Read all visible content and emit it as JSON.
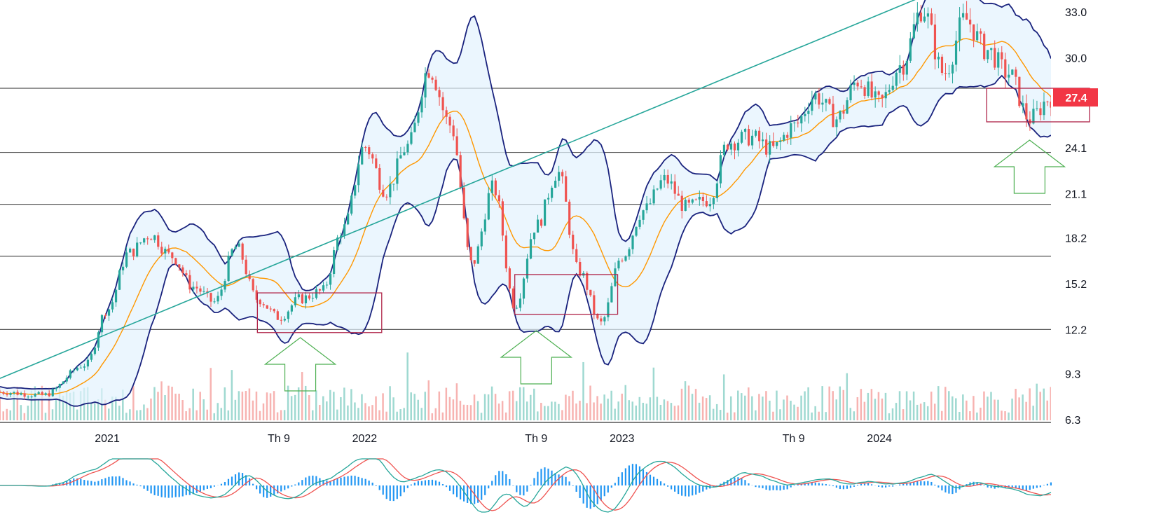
{
  "chart_data": {
    "type": "candlestick",
    "y_axis": {
      "ticks": [
        33.0,
        30.0,
        24.1,
        21.1,
        18.2,
        15.2,
        12.2,
        9.3,
        6.3
      ],
      "tick_labels": [
        "33.0",
        "30.0",
        "24.1",
        "21.1",
        "18.2",
        "15.2",
        "12.2",
        "9.3",
        "6.3"
      ],
      "ylim": [
        5.8,
        33.8
      ],
      "position": "right"
    },
    "x_axis": {
      "start": "2020-08",
      "end": "2024-09",
      "ticks": [
        {
          "label": "2021",
          "date": "2021-01"
        },
        {
          "label": "Th 9",
          "date": "2021-09"
        },
        {
          "label": "2022",
          "date": "2022-01"
        },
        {
          "label": "Th 9",
          "date": "2022-09"
        },
        {
          "label": "2023",
          "date": "2023-01"
        },
        {
          "label": "Th 9",
          "date": "2023-09"
        },
        {
          "label": "2024",
          "date": "2024-01"
        }
      ]
    },
    "last_price": {
      "value": 27.4,
      "label": "27.4",
      "color": "#f23645"
    },
    "horizontal_levels": [
      28.0,
      23.8,
      20.4,
      17.0,
      12.2
    ],
    "trendline": {
      "from": {
        "date": "2020-08",
        "price": 9.0
      },
      "to": {
        "date": "2024-03",
        "price": 34.0
      }
    },
    "price_path": [
      [
        "2020-08",
        8.1
      ],
      [
        "2020-10",
        7.9
      ],
      [
        "2020-12",
        9.9
      ],
      [
        "2021-01",
        13.5
      ],
      [
        "2021-02",
        17.2
      ],
      [
        "2021-03",
        18.4
      ],
      [
        "2021-04",
        17.0
      ],
      [
        "2021-05",
        15.0
      ],
      [
        "2021-06",
        14.0
      ],
      [
        "2021-07",
        17.6
      ],
      [
        "2021-08",
        14.2
      ],
      [
        "2021-09",
        13.0
      ],
      [
        "2021-10",
        14.2
      ],
      [
        "2021-11",
        14.7
      ],
      [
        "2021-12",
        18.8
      ],
      [
        "2022-01",
        24.2
      ],
      [
        "2022-02",
        21.3
      ],
      [
        "2022-03",
        24.2
      ],
      [
        "2022-04",
        29.3
      ],
      [
        "2022-05",
        25.6
      ],
      [
        "2022-06",
        16.5
      ],
      [
        "2022-07",
        21.5
      ],
      [
        "2022-08",
        13.8
      ],
      [
        "2022-09",
        19.0
      ],
      [
        "2022-10",
        22.5
      ],
      [
        "2022-11",
        16.0
      ],
      [
        "2022-12",
        12.6
      ],
      [
        "2023-01",
        17.0
      ],
      [
        "2023-02",
        20.0
      ],
      [
        "2023-03",
        22.0
      ],
      [
        "2023-04",
        20.2
      ],
      [
        "2023-05",
        20.7
      ],
      [
        "2023-06",
        24.5
      ],
      [
        "2023-07",
        24.8
      ],
      [
        "2023-08",
        24.0
      ],
      [
        "2023-09",
        25.5
      ],
      [
        "2023-10",
        27.5
      ],
      [
        "2023-11",
        26.0
      ],
      [
        "2023-12",
        28.5
      ],
      [
        "2024-01",
        27.0
      ],
      [
        "2024-02",
        29.5
      ],
      [
        "2024-03",
        33.2
      ],
      [
        "2024-04",
        29.0
      ],
      [
        "2024-05",
        32.5
      ],
      [
        "2024-06",
        30.5
      ],
      [
        "2024-07",
        29.0
      ],
      [
        "2024-08",
        26.0
      ],
      [
        "2024-09",
        27.4
      ]
    ],
    "annotations": {
      "support_boxes": [
        {
          "from": "2021-08",
          "to": "2021-12",
          "low": 12.0,
          "high": 14.6
        },
        {
          "from": "2022-08",
          "to": "2022-11",
          "low": 13.2,
          "high": 15.8
        },
        {
          "from": "2024-06",
          "to": "2024-09",
          "low": 25.8,
          "high": 28.0
        }
      ],
      "up_arrows": [
        {
          "date": "2021-10",
          "color": "#4caf50"
        },
        {
          "date": "2022-09",
          "color": "#4caf50"
        },
        {
          "date": "2024-08",
          "color": "#4caf50"
        }
      ]
    },
    "colors": {
      "up": "#26a69a",
      "down": "#ef5350",
      "bollinger_band": "#1a237e",
      "band_fill": "#e3f2fd",
      "moving_average": "#ff9800",
      "trendline": "#26a69a",
      "level_line": "#555555",
      "box": "#b0264a",
      "macd_line": "#26a69a",
      "signal_line": "#ef5350",
      "histogram": "#2196f3"
    }
  }
}
